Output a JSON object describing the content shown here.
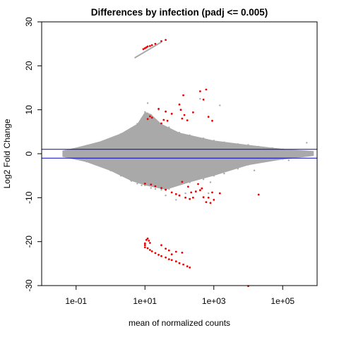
{
  "chart_data": {
    "type": "scatter",
    "title": "Differences by infection (padj <= 0.005)",
    "xlabel": "mean of normalized counts",
    "ylabel": "Log2 Fold Change",
    "x_scale": "log10",
    "xlim": [
      0.01,
      1000000
    ],
    "ylim": [
      -30,
      30
    ],
    "x_ticks": [
      0.1,
      10,
      1000,
      100000
    ],
    "x_tick_labels": [
      "1e-01",
      "1e+01",
      "1e+03",
      "1e+05"
    ],
    "y_ticks": [
      -30,
      -20,
      -10,
      0,
      10,
      20,
      30
    ],
    "y_tick_labels": [
      "-30",
      "-20",
      "-10",
      "0",
      "10",
      "20",
      "30"
    ],
    "grid": false,
    "colors": {
      "nonsignificant": "#a9a9a9",
      "significant": "#ee0000",
      "threshold_lines": "#0000cc"
    },
    "threshold_lines": {
      "y": [
        1,
        -1
      ]
    },
    "series": [
      {
        "key": "background",
        "points": [
          [
            0.05,
            0.6
          ],
          [
            0.05,
            -0.6
          ],
          [
            0.1,
            1.2
          ],
          [
            0.1,
            -1.2
          ],
          [
            0.2,
            1.8
          ],
          [
            0.2,
            -1.8
          ],
          [
            0.5,
            2.6
          ],
          [
            0.5,
            -2.8
          ],
          [
            1,
            3.5
          ],
          [
            1,
            -3.8
          ],
          [
            2,
            4.5
          ],
          [
            2,
            -5.0
          ],
          [
            4,
            5.8
          ],
          [
            4,
            -6.2
          ],
          [
            6,
            6.8
          ],
          [
            6,
            -6.8
          ],
          [
            8,
            8.0
          ],
          [
            8,
            -7.2
          ],
          [
            10,
            9.5
          ],
          [
            10,
            -7.2
          ],
          [
            12,
            9.2
          ],
          [
            15,
            8.8
          ],
          [
            15,
            -7.8
          ],
          [
            20,
            7.5
          ],
          [
            20,
            -8.0
          ],
          [
            30,
            6.8
          ],
          [
            30,
            -8.2
          ],
          [
            50,
            6.0
          ],
          [
            50,
            -8.0
          ],
          [
            100,
            4.8
          ],
          [
            100,
            -7.0
          ],
          [
            200,
            4.2
          ],
          [
            200,
            -6.5
          ],
          [
            500,
            3.5
          ],
          [
            500,
            -5.8
          ],
          [
            1000,
            3.0
          ],
          [
            1000,
            -5.0
          ],
          [
            2000,
            2.6
          ],
          [
            2000,
            -4.5
          ],
          [
            5000,
            2.2
          ],
          [
            5000,
            -3.4
          ],
          [
            10000,
            2.0
          ],
          [
            10000,
            -2.5
          ],
          [
            20000,
            1.6
          ],
          [
            20000,
            -2.0
          ],
          [
            50000,
            1.3
          ],
          [
            50000,
            -1.5
          ],
          [
            100000,
            1.0
          ],
          [
            100000,
            -1.2
          ],
          [
            500000,
            2.5
          ],
          [
            600000,
            -0.4
          ],
          [
            3,
            0.3
          ],
          [
            3,
            -0.3
          ],
          [
            30,
            0.2
          ],
          [
            300,
            -0.2
          ],
          [
            3000,
            0.1
          ],
          [
            12,
            11.5
          ],
          [
            25,
            10.0
          ],
          [
            60,
            9.0
          ],
          [
            40,
            -9.5
          ],
          [
            80,
            -10.5
          ],
          [
            150,
            -9.0
          ],
          [
            300,
            -8.5
          ],
          [
            700,
            -9.0
          ],
          [
            400,
            12.5
          ],
          [
            1500,
            11.0
          ],
          [
            800,
            -6.5
          ],
          [
            2500,
            -3.5
          ],
          [
            15000,
            -3.8
          ],
          [
            150000,
            -1.5
          ],
          [
            400000,
            -0.6
          ],
          [
            40000,
            -0.8
          ]
        ]
      },
      {
        "key": "significant",
        "points": [
          [
            9,
            23.8
          ],
          [
            10,
            24.0
          ],
          [
            11,
            24.2
          ],
          [
            12,
            24.4
          ],
          [
            14,
            24.5
          ],
          [
            16,
            24.7
          ],
          [
            20,
            25.0
          ],
          [
            30,
            25.6
          ],
          [
            40,
            25.9
          ],
          [
            12,
            7.9
          ],
          [
            14,
            8.5
          ],
          [
            16,
            8.2
          ],
          [
            25,
            10.2
          ],
          [
            30,
            6.9
          ],
          [
            35,
            7.7
          ],
          [
            40,
            9.6
          ],
          [
            45,
            7.5
          ],
          [
            60,
            9.1
          ],
          [
            100,
            11.2
          ],
          [
            110,
            10.0
          ],
          [
            130,
            13.3
          ],
          [
            140,
            8.8
          ],
          [
            170,
            7.6
          ],
          [
            250,
            9.4
          ],
          [
            400,
            14.2
          ],
          [
            500,
            12.3
          ],
          [
            600,
            14.6
          ],
          [
            700,
            8.4
          ],
          [
            900,
            7.5
          ],
          [
            120,
            8.0
          ],
          [
            10,
            -6.8
          ],
          [
            15,
            -7.0
          ],
          [
            20,
            -7.4
          ],
          [
            30,
            -7.8
          ],
          [
            40,
            -8.2
          ],
          [
            60,
            -8.8
          ],
          [
            80,
            -9.2
          ],
          [
            100,
            -9.5
          ],
          [
            150,
            -10.0
          ],
          [
            200,
            -10.3
          ],
          [
            250,
            -10.0
          ],
          [
            300,
            -8.6
          ],
          [
            400,
            -8.3
          ],
          [
            500,
            -9.9
          ],
          [
            600,
            -11.0
          ],
          [
            700,
            -10.0
          ],
          [
            800,
            -11.2
          ],
          [
            900,
            -8.8
          ],
          [
            1000,
            -10.5
          ],
          [
            1500,
            -9.0
          ],
          [
            120,
            -6.4
          ],
          [
            180,
            -7.5
          ],
          [
            220,
            -8.8
          ],
          [
            350,
            -6.9
          ],
          [
            450,
            -7.9
          ],
          [
            20000,
            -9.3
          ],
          [
            10,
            -20.4
          ],
          [
            10,
            -20.8
          ],
          [
            10,
            -21.3
          ],
          [
            11,
            -19.6
          ],
          [
            12,
            -21.5
          ],
          [
            14,
            -21.9
          ],
          [
            16,
            -22.2
          ],
          [
            20,
            -22.6
          ],
          [
            25,
            -23.0
          ],
          [
            30,
            -23.3
          ],
          [
            40,
            -23.6
          ],
          [
            50,
            -24.0
          ],
          [
            60,
            -24.2
          ],
          [
            80,
            -24.5
          ],
          [
            100,
            -24.9
          ],
          [
            130,
            -25.2
          ],
          [
            170,
            -25.6
          ],
          [
            30,
            -20.8
          ],
          [
            40,
            -21.6
          ],
          [
            60,
            -22.9
          ],
          [
            80,
            -22.3
          ],
          [
            120,
            -22.5
          ],
          [
            200,
            -25.9
          ],
          [
            12,
            -19.3
          ],
          [
            13,
            -19.8
          ],
          [
            14,
            -20.3
          ],
          [
            50,
            -22.0
          ],
          [
            10000,
            -30.1
          ]
        ]
      }
    ]
  }
}
